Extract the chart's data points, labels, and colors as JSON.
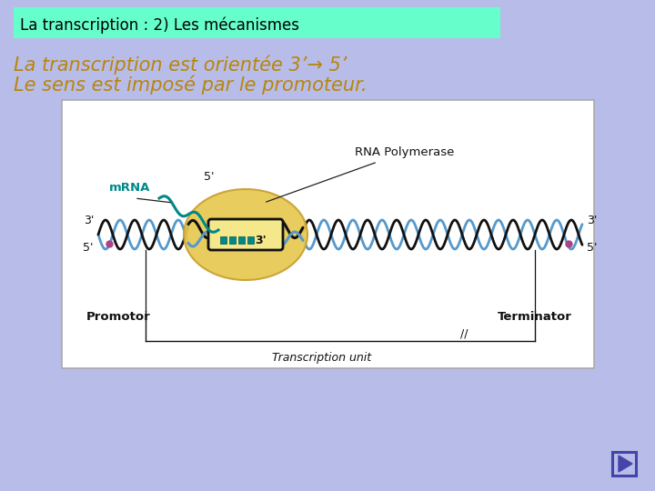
{
  "bg_color": "#b8bce8",
  "title_box_color": "#66ffcc",
  "title_text": "La transcription : 2) Les mécanismes",
  "title_text_color": "#000000",
  "line1_text": "La transcription est orientée 3’→ 5’",
  "line2_text": "Le sens est imposé par le promoteur.",
  "body_text_color": "#b8860b",
  "diagram_bg": "#ffffff",
  "mrna_color": "#008888",
  "dna_blue": "#5599cc",
  "dna_black": "#111111",
  "promoter_label": "Promotor",
  "terminator_label": "Terminator",
  "tu_label": "Transcription unit",
  "mrna_label": "mRNA",
  "rna_pol_label": "RNA Polymerase",
  "ellipse_color": "#e8c850",
  "ellipse_edge": "#c8a030",
  "nav_arrow_color": "#4444aa",
  "purple_color": "#aa4488"
}
